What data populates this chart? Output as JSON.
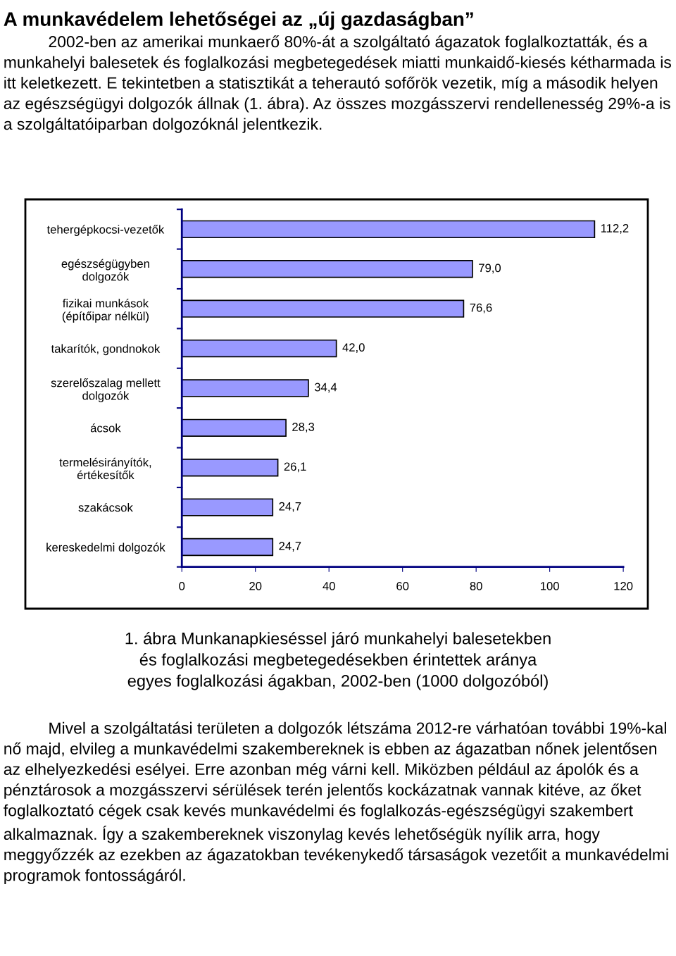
{
  "chart_data": {
    "type": "bar",
    "orientation": "horizontal",
    "title": "A munkavédelem lehetőségei az „új gazdaságban”",
    "categories": [
      "tehergépkocsi-vezetők",
      "egészségügyben\ndolgozók",
      "fizikai munkások\n(építőipar nélkül)",
      "takarítók, gondnokok",
      "szerelőszalag mellett\ndolgozók",
      "ácsok",
      "termelésirányítók,\nértékesítők",
      "szakácsok",
      "kereskedelmi dolgozók"
    ],
    "values": [
      112.2,
      79.0,
      76.6,
      42.0,
      34.4,
      28.3,
      26.1,
      24.7,
      24.7
    ],
    "value_labels": [
      "112,2",
      "79,0",
      "76,6",
      "42,0",
      "34,4",
      "28,3",
      "26,1",
      "24,7",
      "24,7"
    ],
    "color": "#9999ff",
    "xlim": [
      0,
      120
    ],
    "xticks": [
      0,
      20,
      40,
      60,
      80,
      100,
      120
    ],
    "grid": false,
    "legend": false,
    "annotations": [
      "2002-ben az amerikai munkaerő 80%-át a szolgáltató ágazatok foglalkoztatták, és a munkahelyi balesetek és foglalkozási megbetegedések miatti munkaidő-kiesés kétharmada is itt keletkezett. E tekintetben a statisztikát a teherautó sofőrök vezetik, míg a második helyen az egészségügyi dolgozók állnak (1. ábra). Az összes mozgásszervi rendellenesség 29%-a is a szolgáltatóiparban dolgozóknál jelentkezik.",
      "1. ábra Munkanapkieséssel járó munkahelyi balesetekben\nés foglalkozási megbetegedésekben érintettek aránya\negyes foglalkozási ágakban, 2002-ben (1000 dolgozóból)",
      "Mivel a szolgáltatási területen a dolgozók létszáma 2012-re várhatóan további 19%-kal nő majd, elvileg a munkavédelmi szakembereknek is ebben az ágazatban nőnek jelentősen az elhelyezkedési esélyei. Erre azonban még várni kell. Miközben például az ápolók és a pénztárosok a mozgásszervi sérülések terén jelentős kockázatnak vannak kitéve, az őket foglalkoztató cégek csak kevés munkavédelmi és foglalkozás-egészségügyi szakembert alkalmaznak. Így a szakembereknek viszonylag kevés lehetőségük nyílik arra, hogy meggyőzzék az ezekben az ágazatokban tevékenykedő társaságok vezetőit a munkavédelmi programok fontosságáról."
    ]
  }
}
